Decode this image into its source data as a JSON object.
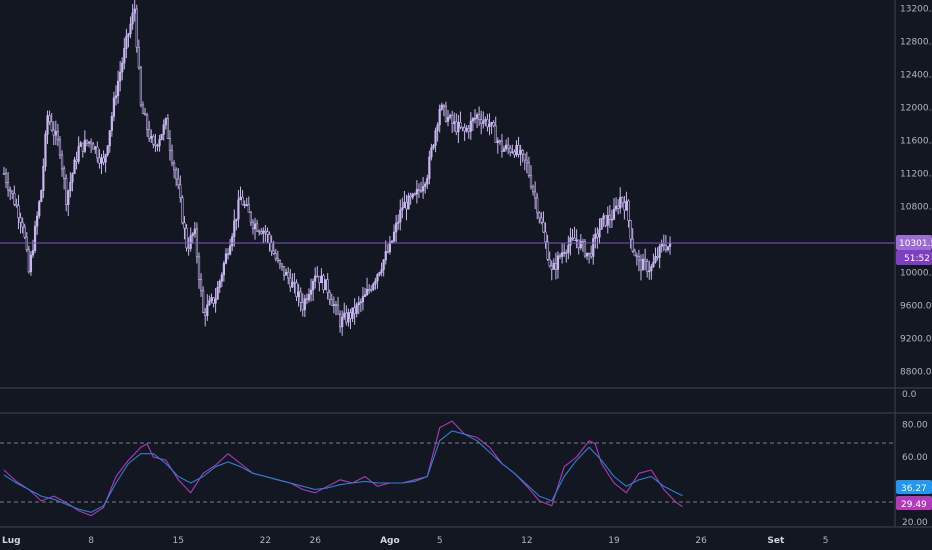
{
  "colors": {
    "background": "#131722",
    "candle": "#c8b8f0",
    "price_line": "#7e57c2",
    "price_badge": "#9c6bd6",
    "countdown_badge": "#7b3fbf",
    "rsi_line": "#b03ab8",
    "rsi_ma_line": "#2d7fd6",
    "rsi_badge_blue": "#2196f3",
    "rsi_badge_purple": "#b03ab8",
    "separator": "#434651",
    "level_line": "#787b86",
    "axis_text": "#b2b5be"
  },
  "price_badge": {
    "value": "10301.5",
    "countdown": "51:52"
  },
  "rsi_badges": {
    "ma": "36.27",
    "rsi": "29.49"
  },
  "volume_pane": {
    "label": "0.0"
  },
  "chart_data": [
    {
      "type": "candlestick",
      "pane": "price",
      "ylim": [
        8600,
        13300
      ],
      "yticks": [
        {
          "label": "13200.0",
          "value": 13200
        },
        {
          "label": "12800.0",
          "value": 12800
        },
        {
          "label": "12400.0",
          "value": 12400
        },
        {
          "label": "12000.0",
          "value": 12000
        },
        {
          "label": "11600.0",
          "value": 11600
        },
        {
          "label": "11200.0",
          "value": 11200
        },
        {
          "label": "10800.0",
          "value": 10800
        },
        {
          "label": "10400.0",
          "value": 10400
        },
        {
          "label": "10000.0",
          "value": 10000
        },
        {
          "label": "9600.0",
          "value": 9600
        },
        {
          "label": "9200.0",
          "value": 9200
        },
        {
          "label": "8800.0",
          "value": 8800
        }
      ],
      "last_price": 10301.5,
      "xticks": [
        {
          "label": "Lug",
          "day": 1,
          "bold": true
        },
        {
          "label": "8",
          "day": 8,
          "bold": false
        },
        {
          "label": "15",
          "day": 15,
          "bold": false
        },
        {
          "label": "22",
          "day": 22,
          "bold": false
        },
        {
          "label": "26",
          "day": 26,
          "bold": false
        },
        {
          "label": "Ago",
          "day": 32,
          "bold": true
        },
        {
          "label": "5",
          "day": 36,
          "bold": false
        },
        {
          "label": "12",
          "day": 43,
          "bold": false
        },
        {
          "label": "19",
          "day": 50,
          "bold": false
        },
        {
          "label": "26",
          "day": 57,
          "bold": false
        },
        {
          "label": "Set",
          "day": 63,
          "bold": true
        },
        {
          "label": "5",
          "day": 67,
          "bold": false
        }
      ],
      "close_path": [
        [
          1,
          11200
        ],
        [
          2.5,
          10600
        ],
        [
          3,
          10000
        ],
        [
          4,
          11000
        ],
        [
          4.5,
          11900
        ],
        [
          5.5,
          11500
        ],
        [
          6,
          10900
        ],
        [
          7,
          11500
        ],
        [
          8,
          11600
        ],
        [
          9,
          11300
        ],
        [
          10,
          12200
        ],
        [
          11,
          12900
        ],
        [
          11.5,
          13200
        ],
        [
          12,
          12000
        ],
        [
          13,
          11500
        ],
        [
          14,
          11800
        ],
        [
          15,
          11000
        ],
        [
          15.7,
          10300
        ],
        [
          16.3,
          10500
        ],
        [
          17,
          9500
        ],
        [
          18,
          9700
        ],
        [
          19,
          10300
        ],
        [
          20,
          10900
        ],
        [
          21,
          10600
        ],
        [
          22,
          10500
        ],
        [
          23,
          10100
        ],
        [
          24,
          9900
        ],
        [
          25,
          9600
        ],
        [
          26,
          10000
        ],
        [
          27,
          9800
        ],
        [
          28,
          9400
        ],
        [
          29,
          9500
        ],
        [
          30,
          9700
        ],
        [
          31,
          10000
        ],
        [
          32,
          10300
        ],
        [
          33,
          10800
        ],
        [
          34,
          10900
        ],
        [
          35,
          11200
        ],
        [
          36,
          12000
        ],
        [
          37,
          11800
        ],
        [
          38,
          11700
        ],
        [
          39,
          11900
        ],
        [
          40,
          11800
        ],
        [
          41,
          11500
        ],
        [
          42,
          11500
        ],
        [
          43,
          11300
        ],
        [
          44,
          10700
        ],
        [
          45,
          10000
        ],
        [
          46,
          10300
        ],
        [
          47,
          10400
        ],
        [
          48,
          10200
        ],
        [
          49,
          10600
        ],
        [
          50,
          10700
        ],
        [
          50.5,
          10900
        ],
        [
          51,
          10800
        ],
        [
          51.5,
          10300
        ],
        [
          52,
          10100
        ],
        [
          53,
          10050
        ],
        [
          54,
          10350
        ],
        [
          54.5,
          10300
        ]
      ]
    },
    {
      "type": "line",
      "pane": "rsi",
      "ylim": [
        17,
        87
      ],
      "yticks": [
        {
          "label": "80.00",
          "value": 80
        },
        {
          "label": "60.00",
          "value": 60
        },
        {
          "label": "20.00",
          "value": 20
        }
      ],
      "levels": [
        70,
        30
      ],
      "series": [
        {
          "color_key": "rsi_line",
          "points": [
            [
              0,
              52
            ],
            [
              1,
              45
            ],
            [
              2,
              40
            ],
            [
              3,
              33
            ],
            [
              4,
              36
            ],
            [
              5,
              32
            ],
            [
              6,
              27
            ],
            [
              7,
              24
            ],
            [
              8,
              29
            ],
            [
              9,
              48
            ],
            [
              10,
              58
            ],
            [
              11,
              66
            ],
            [
              11.5,
              68
            ],
            [
              12,
              60
            ],
            [
              13,
              58
            ],
            [
              14,
              46
            ],
            [
              15,
              38
            ],
            [
              16,
              50
            ],
            [
              17,
              55
            ],
            [
              18,
              62
            ],
            [
              19,
              56
            ],
            [
              20,
              50
            ],
            [
              21,
              48
            ],
            [
              22,
              46
            ],
            [
              23,
              44
            ],
            [
              24,
              40
            ],
            [
              25,
              38
            ],
            [
              26,
              42
            ],
            [
              27,
              46
            ],
            [
              28,
              44
            ],
            [
              29,
              48
            ],
            [
              30,
              42
            ],
            [
              31,
              44
            ],
            [
              32,
              44
            ],
            [
              33,
              46
            ],
            [
              34,
              48
            ],
            [
              35,
              78
            ],
            [
              36,
              82
            ],
            [
              37,
              74
            ],
            [
              38,
              72
            ],
            [
              39,
              66
            ],
            [
              40,
              56
            ],
            [
              41,
              50
            ],
            [
              42,
              42
            ],
            [
              43,
              33
            ],
            [
              44,
              30
            ],
            [
              45,
              54
            ],
            [
              46,
              60
            ],
            [
              47,
              70
            ],
            [
              47.5,
              68
            ],
            [
              48,
              56
            ],
            [
              49,
              44
            ],
            [
              50,
              38
            ],
            [
              51,
              50
            ],
            [
              52,
              52
            ],
            [
              52.5,
              46
            ],
            [
              53,
              40
            ],
            [
              54,
              32
            ],
            [
              54.5,
              29.49
            ]
          ]
        },
        {
          "color_key": "rsi_ma_line",
          "points": [
            [
              0,
              49
            ],
            [
              1,
              44
            ],
            [
              2,
              40
            ],
            [
              3,
              36
            ],
            [
              4,
              34
            ],
            [
              5,
              31
            ],
            [
              6,
              28
            ],
            [
              7,
              26
            ],
            [
              8,
              30
            ],
            [
              9,
              44
            ],
            [
              10,
              56
            ],
            [
              11,
              62
            ],
            [
              12,
              62
            ],
            [
              13,
              56
            ],
            [
              14,
              48
            ],
            [
              15,
              44
            ],
            [
              16,
              48
            ],
            [
              17,
              54
            ],
            [
              18,
              57
            ],
            [
              19,
              54
            ],
            [
              20,
              50
            ],
            [
              21,
              48
            ],
            [
              22,
              46
            ],
            [
              23,
              44
            ],
            [
              24,
              42
            ],
            [
              25,
              40
            ],
            [
              26,
              41
            ],
            [
              27,
              43
            ],
            [
              28,
              44
            ],
            [
              29,
              45
            ],
            [
              30,
              44
            ],
            [
              31,
              44
            ],
            [
              32,
              44
            ],
            [
              33,
              45
            ],
            [
              34,
              48
            ],
            [
              35,
              70
            ],
            [
              36,
              76
            ],
            [
              37,
              74
            ],
            [
              38,
              70
            ],
            [
              39,
              63
            ],
            [
              40,
              56
            ],
            [
              41,
              50
            ],
            [
              42,
              43
            ],
            [
              43,
              36
            ],
            [
              44,
              33
            ],
            [
              45,
              48
            ],
            [
              46,
              58
            ],
            [
              47,
              66
            ],
            [
              48,
              58
            ],
            [
              49,
              48
            ],
            [
              50,
              42
            ],
            [
              51,
              46
            ],
            [
              52,
              48
            ],
            [
              53,
              42
            ],
            [
              54,
              38
            ],
            [
              54.5,
              36.27
            ]
          ]
        }
      ]
    }
  ]
}
